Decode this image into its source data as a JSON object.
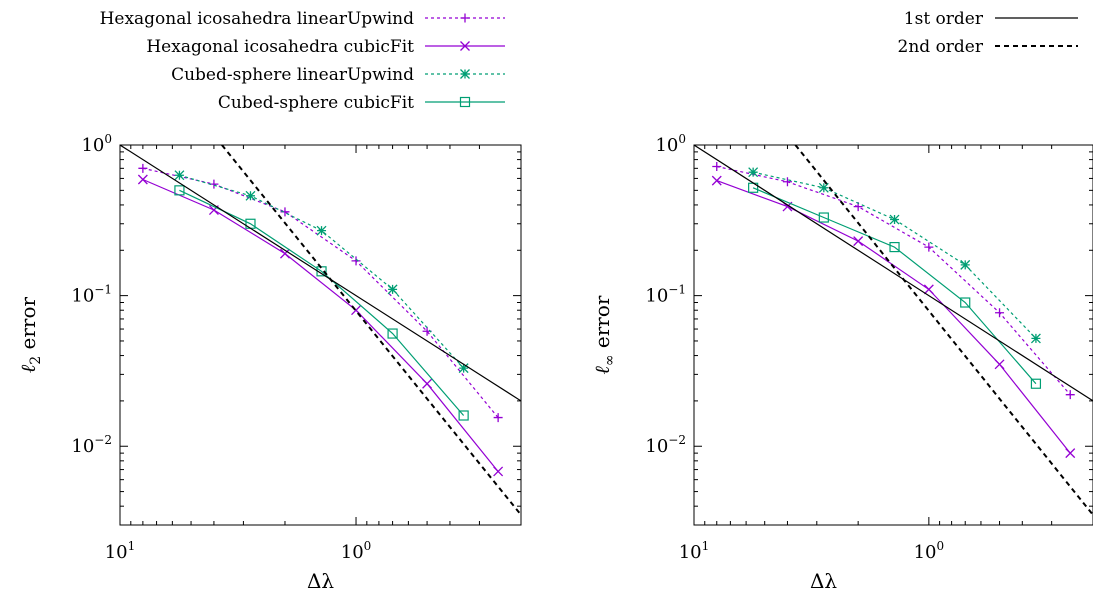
{
  "legend_left": [
    {
      "label": "Hexagonal icosahedra linearUpwind",
      "series": "hex_lu"
    },
    {
      "label": "Hexagonal icosahedra cubicFit",
      "series": "hex_cf"
    },
    {
      "label": "Cubed-sphere linearUpwind",
      "series": "cs_lu"
    },
    {
      "label": "Cubed-sphere cubicFit",
      "series": "cs_cf"
    }
  ],
  "legend_right": [
    {
      "label": "1st order",
      "series": "first"
    },
    {
      "label": "2nd order",
      "series": "second"
    }
  ],
  "colors": {
    "hex": "#9400d3",
    "cs": "#009e73",
    "ref": "#000000"
  },
  "chart_data": [
    {
      "type": "line",
      "panel": "left",
      "xlabel": "Δλ",
      "ylabel_main": "ℓ",
      "ylabel_sub": "2",
      "ylabel_rest": " error",
      "x_scale": "log",
      "y_scale": "log",
      "x_reversed": true,
      "xlim": [
        10,
        0.2
      ],
      "ylim": [
        0.003,
        1
      ],
      "x_ticks": [
        {
          "base": "10",
          "exp": "1",
          "value": 10
        },
        {
          "base": "10",
          "exp": "0",
          "value": 1
        }
      ],
      "y_ticks": [
        {
          "base": "10",
          "exp": "0",
          "value": 1
        },
        {
          "base": "10",
          "exp": "−1",
          "value": 0.1
        },
        {
          "base": "10",
          "exp": "−2",
          "value": 0.01
        }
      ],
      "grid": false,
      "series": [
        {
          "key": "hex_lu",
          "name": "Hexagonal icosahedra linearUpwind",
          "color": "#9400d3",
          "dash": "dotted",
          "marker": "plus",
          "points": [
            [
              8.0,
              0.7
            ],
            [
              4.0,
              0.55
            ],
            [
              2.0,
              0.36
            ],
            [
              1.0,
              0.17
            ],
            [
              0.5,
              0.058
            ],
            [
              0.25,
              0.0155
            ]
          ]
        },
        {
          "key": "hex_cf",
          "name": "Hexagonal icosahedra cubicFit",
          "color": "#9400d3",
          "dash": "solid",
          "marker": "cross",
          "points": [
            [
              8.0,
              0.59
            ],
            [
              4.0,
              0.37
            ],
            [
              2.0,
              0.19
            ],
            [
              1.0,
              0.08
            ],
            [
              0.5,
              0.026
            ],
            [
              0.25,
              0.0068
            ]
          ]
        },
        {
          "key": "cs_lu",
          "name": "Cubed-sphere linearUpwind",
          "color": "#009e73",
          "dash": "dotted",
          "marker": "star",
          "points": [
            [
              5.6,
              0.63
            ],
            [
              2.8,
              0.46
            ],
            [
              1.4,
              0.27
            ],
            [
              0.7,
              0.11
            ],
            [
              0.35,
              0.033
            ]
          ]
        },
        {
          "key": "cs_cf",
          "name": "Cubed-sphere cubicFit",
          "color": "#009e73",
          "dash": "solid",
          "marker": "square",
          "points": [
            [
              5.6,
              0.5
            ],
            [
              2.8,
              0.3
            ],
            [
              1.4,
              0.145
            ],
            [
              0.7,
              0.056
            ],
            [
              0.35,
              0.016
            ]
          ]
        },
        {
          "key": "first",
          "name": "1st order",
          "color": "#000000",
          "dash": "solid",
          "marker": "none",
          "points": [
            [
              10,
              1.0
            ],
            [
              0.2,
              0.02
            ]
          ]
        },
        {
          "key": "second",
          "name": "2nd order",
          "color": "#000000",
          "dash": "dashed",
          "marker": "none",
          "points": [
            [
              3.7,
              1.0
            ],
            [
              0.2,
              0.0035
            ]
          ]
        }
      ]
    },
    {
      "type": "line",
      "panel": "right",
      "xlabel": "Δλ",
      "ylabel_main": "ℓ",
      "ylabel_sub": "∞",
      "ylabel_rest": " error",
      "x_scale": "log",
      "y_scale": "log",
      "x_reversed": true,
      "xlim": [
        10,
        0.2
      ],
      "ylim": [
        0.003,
        1
      ],
      "x_ticks": [
        {
          "base": "10",
          "exp": "1",
          "value": 10
        },
        {
          "base": "10",
          "exp": "0",
          "value": 1
        }
      ],
      "y_ticks": [
        {
          "base": "10",
          "exp": "0",
          "value": 1
        },
        {
          "base": "10",
          "exp": "−1",
          "value": 0.1
        },
        {
          "base": "10",
          "exp": "−2",
          "value": 0.01
        }
      ],
      "grid": false,
      "series": [
        {
          "key": "hex_lu",
          "name": "Hexagonal icosahedra linearUpwind",
          "color": "#9400d3",
          "dash": "dotted",
          "marker": "plus",
          "points": [
            [
              8.0,
              0.72
            ],
            [
              4.0,
              0.57
            ],
            [
              2.0,
              0.39
            ],
            [
              1.0,
              0.21
            ],
            [
              0.5,
              0.077
            ],
            [
              0.25,
              0.022
            ]
          ]
        },
        {
          "key": "hex_cf",
          "name": "Hexagonal icosahedra cubicFit",
          "color": "#9400d3",
          "dash": "solid",
          "marker": "cross",
          "points": [
            [
              8.0,
              0.58
            ],
            [
              4.0,
              0.39
            ],
            [
              2.0,
              0.23
            ],
            [
              1.0,
              0.11
            ],
            [
              0.5,
              0.035
            ],
            [
              0.25,
              0.009
            ]
          ]
        },
        {
          "key": "cs_lu",
          "name": "Cubed-sphere linearUpwind",
          "color": "#009e73",
          "dash": "dotted",
          "marker": "star",
          "points": [
            [
              5.6,
              0.66
            ],
            [
              2.8,
              0.52
            ],
            [
              1.4,
              0.32
            ],
            [
              0.7,
              0.16
            ],
            [
              0.35,
              0.052
            ]
          ]
        },
        {
          "key": "cs_cf",
          "name": "Cubed-sphere cubicFit",
          "color": "#009e73",
          "dash": "solid",
          "marker": "square",
          "points": [
            [
              5.6,
              0.52
            ],
            [
              2.8,
              0.33
            ],
            [
              1.4,
              0.21
            ],
            [
              0.7,
              0.09
            ],
            [
              0.35,
              0.026
            ]
          ]
        },
        {
          "key": "first",
          "name": "1st order",
          "color": "#000000",
          "dash": "solid",
          "marker": "none",
          "points": [
            [
              10,
              1.0
            ],
            [
              0.2,
              0.02
            ]
          ]
        },
        {
          "key": "second",
          "name": "2nd order",
          "color": "#000000",
          "dash": "dashed",
          "marker": "none",
          "points": [
            [
              3.7,
              1.0
            ],
            [
              0.2,
              0.0035
            ]
          ]
        }
      ]
    }
  ]
}
